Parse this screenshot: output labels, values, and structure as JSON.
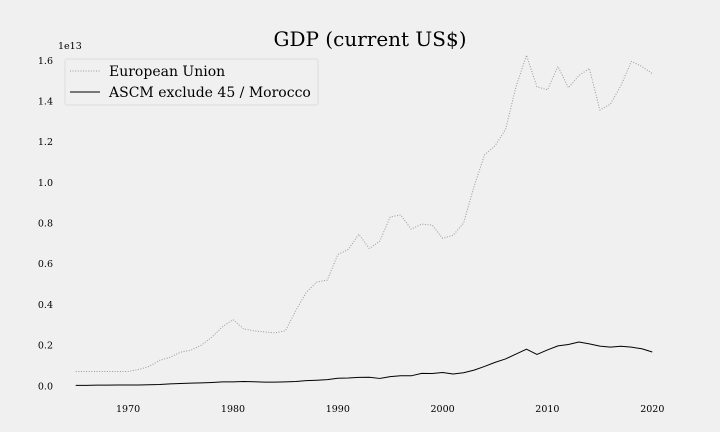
{
  "chart_data": {
    "type": "line",
    "title": "GDP (current US$)",
    "xlabel": "",
    "ylabel": "",
    "y_offset_label": "1e13",
    "xlim": [
      1963.5,
      2021.5
    ],
    "ylim": [
      -0.07,
      1.7
    ],
    "x_ticks": [
      {
        "value": 1970,
        "label": "1970"
      },
      {
        "value": 1980,
        "label": "1980"
      },
      {
        "value": 1990,
        "label": "1990"
      },
      {
        "value": 2000,
        "label": "2000"
      },
      {
        "value": 2010,
        "label": "2010"
      },
      {
        "value": 2020,
        "label": "2020"
      }
    ],
    "y_ticks": [
      {
        "value": 0.0,
        "label": "0.0"
      },
      {
        "value": 0.2,
        "label": "0.2"
      },
      {
        "value": 0.4,
        "label": "0.4"
      },
      {
        "value": 0.6,
        "label": "0.6"
      },
      {
        "value": 0.8,
        "label": "0.8"
      },
      {
        "value": 1.0,
        "label": "1.0"
      },
      {
        "value": 1.2,
        "label": "1.2"
      },
      {
        "value": 1.4,
        "label": "1.4"
      },
      {
        "value": 1.6,
        "label": "1.6"
      }
    ],
    "grid": false,
    "legend_position": "top-left",
    "x": [
      1965,
      1966,
      1967,
      1968,
      1969,
      1970,
      1971,
      1972,
      1973,
      1974,
      1975,
      1976,
      1977,
      1978,
      1979,
      1980,
      1981,
      1982,
      1983,
      1984,
      1985,
      1986,
      1987,
      1988,
      1989,
      1990,
      1991,
      1992,
      1993,
      1994,
      1995,
      1996,
      1997,
      1998,
      1999,
      2000,
      2001,
      2002,
      2003,
      2004,
      2005,
      2006,
      2007,
      2008,
      2009,
      2010,
      2011,
      2012,
      2013,
      2014,
      2015,
      2016,
      2017,
      2018,
      2019,
      2020
    ],
    "series": [
      {
        "name": "European Union",
        "color": "#999999",
        "style": "dotted",
        "values": [
          0.07,
          0.07,
          0.07,
          0.07,
          0.07,
          0.07,
          0.08,
          0.095,
          0.125,
          0.14,
          0.165,
          0.175,
          0.2,
          0.24,
          0.29,
          0.325,
          0.28,
          0.27,
          0.265,
          0.26,
          0.27,
          0.37,
          0.46,
          0.51,
          0.52,
          0.645,
          0.67,
          0.745,
          0.675,
          0.71,
          0.83,
          0.84,
          0.77,
          0.795,
          0.79,
          0.725,
          0.74,
          0.8,
          0.98,
          1.135,
          1.18,
          1.26,
          1.47,
          1.625,
          1.47,
          1.455,
          1.57,
          1.465,
          1.525,
          1.56,
          1.355,
          1.385,
          1.475,
          1.595,
          1.57,
          1.535
        ]
      },
      {
        "name": "ASCM exclude 45 / Morocco",
        "color": "#000000",
        "style": "solid",
        "values": [
          0.002,
          0.002,
          0.003,
          0.003,
          0.004,
          0.004,
          0.004,
          0.005,
          0.006,
          0.009,
          0.011,
          0.013,
          0.014,
          0.016,
          0.019,
          0.019,
          0.021,
          0.02,
          0.018,
          0.018,
          0.019,
          0.021,
          0.025,
          0.027,
          0.03,
          0.037,
          0.038,
          0.041,
          0.042,
          0.036,
          0.045,
          0.049,
          0.049,
          0.061,
          0.06,
          0.065,
          0.058,
          0.064,
          0.077,
          0.095,
          0.115,
          0.132,
          0.156,
          0.18,
          0.154,
          0.176,
          0.196,
          0.203,
          0.215,
          0.206,
          0.195,
          0.19,
          0.194,
          0.19,
          0.182,
          0.166
        ]
      }
    ]
  }
}
